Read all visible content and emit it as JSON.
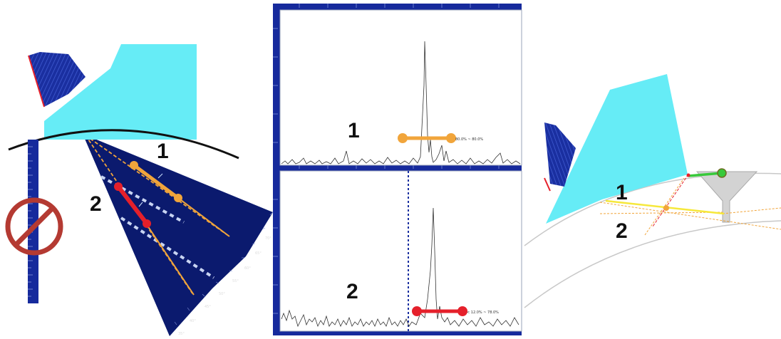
{
  "left_panel": {
    "label_1": "1",
    "label_2": "2",
    "angle_labels": [
      "70°",
      "65°",
      "60°",
      "55°",
      "50°",
      "45°",
      "40°",
      "35°"
    ],
    "prohibition_icon": "no-symbol-icon"
  },
  "middle_panel": {
    "top_label": "1",
    "bottom_label": "2",
    "top_readout": "80.0% ~ 80.0%",
    "bottom_readout": "< 12.0% ~ 78.0%"
  },
  "right_panel": {
    "label_1": "1",
    "label_2": "2"
  },
  "colors": {
    "wedge": "#66ecf6",
    "probe": "#1a2fa0",
    "sector": "#0b1a6e",
    "beam_orange": "#f1a53b",
    "beam_red": "#e5202b",
    "beam_yellow": "#f6e83b",
    "green": "#37c93a",
    "ruler": "#162a9c"
  }
}
